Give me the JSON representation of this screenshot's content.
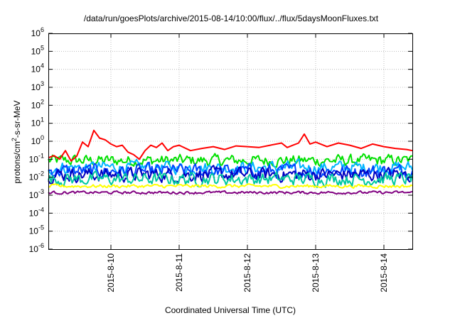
{
  "chart_data": {
    "type": "line",
    "title": "/data/run/goesPlots/archive/2015-08-14/10:00/flux/../flux/5daysMoonFluxes.txt",
    "xlabel": "Coordinated Universal Time (UTC)",
    "ylabel": {
      "prefix": "protons/cm",
      "sup": "2",
      "suffix": "-s-sr-MeV"
    },
    "yscale": "log",
    "ylim": [
      1e-06,
      1000000.0
    ],
    "ytick_labels": [
      {
        "value": 1e-06,
        "base": "10",
        "exp": "-6"
      },
      {
        "value": 1e-05,
        "base": "10",
        "exp": "-5"
      },
      {
        "value": 0.0001,
        "base": "10",
        "exp": "-4"
      },
      {
        "value": 0.001,
        "base": "10",
        "exp": "-3"
      },
      {
        "value": 0.01,
        "base": "10",
        "exp": "-2"
      },
      {
        "value": 0.1,
        "base": "10",
        "exp": "-1"
      },
      {
        "value": 1,
        "base": "10",
        "exp": "0"
      },
      {
        "value": 10,
        "base": "10",
        "exp": "1"
      },
      {
        "value": 100,
        "base": "10",
        "exp": "2"
      },
      {
        "value": 1000,
        "base": "10",
        "exp": "3"
      },
      {
        "value": 10000,
        "base": "10",
        "exp": "4"
      },
      {
        "value": 100000,
        "base": "10",
        "exp": "5"
      },
      {
        "value": 1000000,
        "base": "10",
        "exp": "6"
      }
    ],
    "xlim": [
      "2015-08-09 02:00",
      "2015-08-14 10:00"
    ],
    "xtick_labels": [
      {
        "value": "2015-08-10 00:00",
        "label": "2015-8-10"
      },
      {
        "value": "2015-08-11 00:00",
        "label": "2015-8-11"
      },
      {
        "value": "2015-08-12 00:00",
        "label": "2015-8-12"
      },
      {
        "value": "2015-08-13 00:00",
        "label": "2015-8-13"
      },
      {
        "value": "2015-08-14 00:00",
        "label": "2015-8-14"
      }
    ],
    "grid": true,
    "series": [
      {
        "color": "#ff0000",
        "x": [
          "2015-08-09 02:00",
          "2015-08-09 04:00",
          "2015-08-09 06:00",
          "2015-08-09 08:00",
          "2015-08-09 10:00",
          "2015-08-09 12:00",
          "2015-08-09 14:00",
          "2015-08-09 16:00",
          "2015-08-09 18:00",
          "2015-08-09 20:00",
          "2015-08-09 22:00",
          "2015-08-10 00:00",
          "2015-08-10 02:00",
          "2015-08-10 04:00",
          "2015-08-10 06:00",
          "2015-08-10 08:00",
          "2015-08-10 10:00",
          "2015-08-10 12:00",
          "2015-08-10 14:00",
          "2015-08-10 16:00",
          "2015-08-10 18:00",
          "2015-08-10 20:00",
          "2015-08-10 22:00",
          "2015-08-11 00:00",
          "2015-08-11 04:00",
          "2015-08-11 08:00",
          "2015-08-11 12:00",
          "2015-08-11 16:00",
          "2015-08-11 20:00",
          "2015-08-12 00:00",
          "2015-08-12 04:00",
          "2015-08-12 08:00",
          "2015-08-12 12:00",
          "2015-08-12 14:00",
          "2015-08-12 16:00",
          "2015-08-12 18:00",
          "2015-08-12 20:00",
          "2015-08-12 22:00",
          "2015-08-13 00:00",
          "2015-08-13 04:00",
          "2015-08-13 08:00",
          "2015-08-13 12:00",
          "2015-08-13 16:00",
          "2015-08-13 20:00",
          "2015-08-14 00:00",
          "2015-08-14 04:00",
          "2015-08-14 08:00",
          "2015-08-14 10:00"
        ],
        "y": [
          0.12,
          0.16,
          0.1,
          0.3,
          0.08,
          0.15,
          0.9,
          0.5,
          4.0,
          1.5,
          1.2,
          0.7,
          0.5,
          0.6,
          0.25,
          0.18,
          0.1,
          0.3,
          0.6,
          0.45,
          0.8,
          0.3,
          0.5,
          0.6,
          0.3,
          0.4,
          0.5,
          0.35,
          0.55,
          0.5,
          0.45,
          0.6,
          0.8,
          0.45,
          0.6,
          0.8,
          2.5,
          0.7,
          0.9,
          0.5,
          0.8,
          0.6,
          0.4,
          0.7,
          0.5,
          0.4,
          0.35,
          0.3
        ]
      },
      {
        "color": "#00e000",
        "base": 0.085,
        "amp": 0.5
      },
      {
        "color": "#00b4ff",
        "base": 0.035,
        "amp": 0.55
      },
      {
        "color": "#0044ff",
        "base": 0.022,
        "amp": 0.6
      },
      {
        "color": "#0000c0",
        "base": 0.014,
        "amp": 0.6
      },
      {
        "color": "#00c8a0",
        "base": 0.008,
        "amp": 0.55
      },
      {
        "color": "#ffff00",
        "base": 0.0032,
        "amp": 0.15
      },
      {
        "color": "#800080",
        "base": 0.0014,
        "amp": 0.12
      }
    ]
  }
}
